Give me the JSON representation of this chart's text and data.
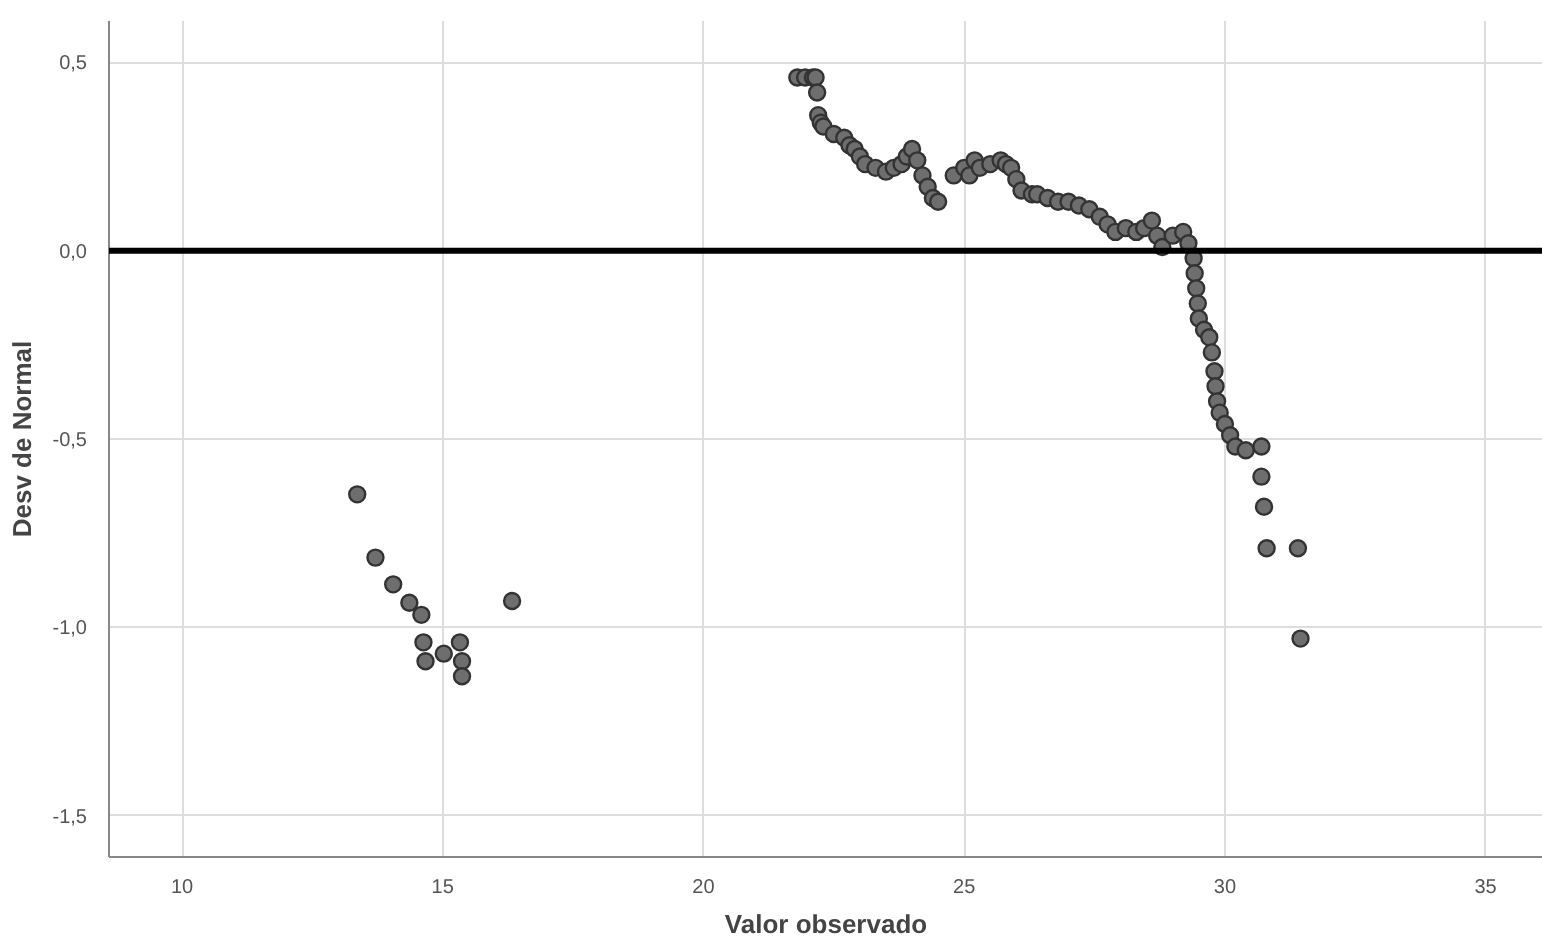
{
  "chart_data": {
    "type": "scatter",
    "xlabel": "Valor observado",
    "ylabel": "Desv de Normal",
    "x": [
      13.36,
      13.71,
      14.05,
      14.36,
      14.59,
      14.63,
      14.67,
      15.02,
      15.33,
      15.37,
      15.37,
      16.33,
      21.8,
      21.95,
      22.1,
      22.15,
      22.18,
      22.2,
      22.25,
      22.3,
      22.5,
      22.7,
      22.8,
      22.9,
      23.0,
      23.1,
      23.3,
      23.5,
      23.65,
      23.8,
      23.9,
      24.0,
      24.1,
      24.2,
      24.3,
      24.4,
      24.5,
      24.8,
      25.0,
      25.1,
      25.2,
      25.3,
      25.5,
      25.7,
      25.8,
      25.9,
      26.0,
      26.1,
      26.3,
      26.4,
      26.6,
      26.8,
      27.0,
      27.2,
      27.4,
      27.6,
      27.75,
      27.9,
      28.1,
      28.3,
      28.45,
      28.6,
      28.7,
      28.8,
      29.0,
      29.2,
      29.3,
      29.4,
      29.42,
      29.45,
      29.48,
      29.5,
      29.6,
      29.7,
      29.75,
      29.8,
      29.82,
      29.85,
      29.9,
      30.0,
      30.1,
      30.2,
      30.4,
      30.7,
      30.7,
      30.75,
      30.8,
      31.4,
      31.45
    ],
    "values": [
      -0.647,
      -0.815,
      -0.886,
      -0.935,
      -0.967,
      -1.04,
      -1.09,
      -1.07,
      -1.04,
      -1.09,
      -1.13,
      -0.93,
      0.46,
      0.46,
      0.46,
      0.46,
      0.42,
      0.36,
      0.34,
      0.33,
      0.31,
      0.3,
      0.28,
      0.27,
      0.25,
      0.23,
      0.22,
      0.21,
      0.22,
      0.23,
      0.25,
      0.27,
      0.24,
      0.2,
      0.17,
      0.14,
      0.13,
      0.2,
      0.22,
      0.2,
      0.24,
      0.22,
      0.23,
      0.24,
      0.23,
      0.22,
      0.19,
      0.16,
      0.15,
      0.15,
      0.14,
      0.13,
      0.13,
      0.12,
      0.11,
      0.09,
      0.07,
      0.05,
      0.06,
      0.05,
      0.06,
      0.08,
      0.04,
      0.01,
      0.04,
      0.05,
      0.02,
      -0.02,
      -0.06,
      -0.1,
      -0.14,
      -0.18,
      -0.21,
      -0.23,
      -0.27,
      -0.32,
      -0.36,
      -0.4,
      -0.43,
      -0.46,
      -0.49,
      -0.52,
      -0.53,
      -0.52,
      -0.6,
      -0.68,
      -0.79,
      -0.79,
      -1.03
    ],
    "color": "#6e6e6e",
    "marker": "circle",
    "grid": true,
    "xlim": [
      8.6,
      36.1
    ],
    "ylim": [
      -1.61,
      0.61
    ],
    "xticks": [
      10,
      15,
      20,
      25,
      30,
      35
    ],
    "yticks": [
      {
        "value": 0.5,
        "label": "0,5"
      },
      {
        "value": 0.0,
        "label": "0,0"
      },
      {
        "value": -0.5,
        "label": "-0,5"
      },
      {
        "value": -1.0,
        "label": "-1,0"
      },
      {
        "value": -1.5,
        "label": "-1,5"
      }
    ],
    "ref_lines": [
      {
        "axis": "y",
        "value": 0,
        "color": "#000000"
      }
    ]
  }
}
